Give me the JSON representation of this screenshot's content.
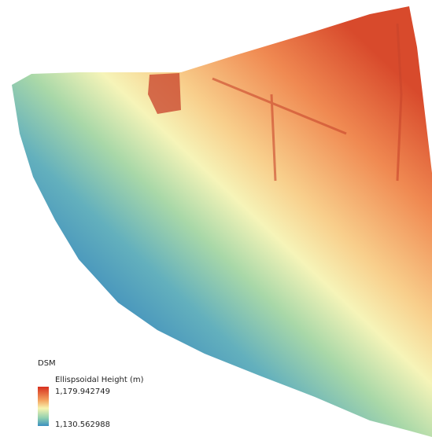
{
  "legend": {
    "title": "DSM",
    "subtitle": "Ellispsoidal Height (m)",
    "max_label": "1,179.942749",
    "min_label": "1,130.562988"
  }
}
